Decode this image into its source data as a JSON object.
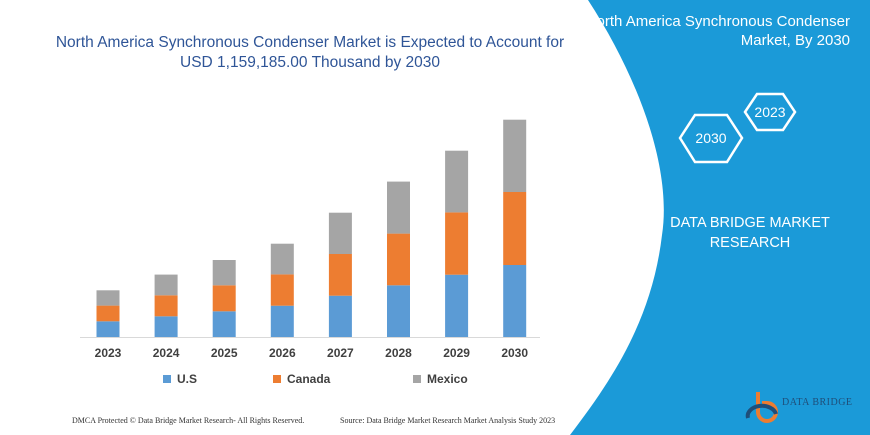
{
  "header": {
    "title_line1": "North America Synchronous Condenser Market is Expected to Account for",
    "title_line2": "USD 1,159,185.00 Thousand by 2030"
  },
  "side_panel": {
    "title_line1": "North America Synchronous Condenser",
    "title_line2": "Market, By 2030",
    "hex_1": "2023",
    "hex_2": "2030",
    "brand_line1": "DATA BRIDGE MARKET",
    "brand_line2": "RESEARCH",
    "color": "#1b9ad8"
  },
  "footer": {
    "left": "DMCA Protected © Data Bridge Market Research-  All Rights Reserved.",
    "right": "Source: Data Bridge Market Research  Market Analysis Study 2023",
    "logo_text": "DATA BRIDGE"
  },
  "chart_data": {
    "type": "bar",
    "stacked": true,
    "note_units": "relative (no value axis shown)",
    "categories": [
      "2023",
      "2024",
      "2025",
      "2026",
      "2027",
      "2028",
      "2029",
      "2030"
    ],
    "series": [
      {
        "name": "U.S",
        "color": "#5b9bd5",
        "values": [
          15.7,
          20.7,
          25.7,
          31.3,
          41.3,
          51.7,
          62.3,
          72
        ]
      },
      {
        "name": "Canada",
        "color": "#ed7d31",
        "values": [
          15.7,
          21,
          26,
          31.3,
          41.7,
          51.7,
          62.3,
          73
        ]
      },
      {
        "name": "Mexico",
        "color": "#a5a5a5",
        "values": [
          15.3,
          20.7,
          25.3,
          30.7,
          41.3,
          52,
          61.7,
          72.3
        ]
      }
    ],
    "legend_position": "bottom",
    "grid": false
  }
}
